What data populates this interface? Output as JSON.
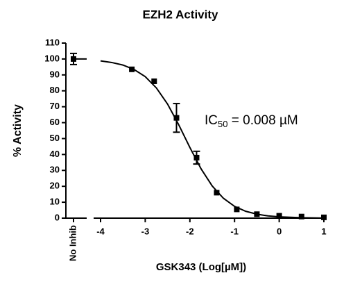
{
  "chart_data": {
    "type": "scatter",
    "title": "EZH2 Activity",
    "x_label": "GSK343 (Log[µM])",
    "y_label": "% Activity",
    "annotation": {
      "text": "IC",
      "subscript": "50",
      "rest": " = 0.008 µM"
    },
    "no_inhib": {
      "label": "No Inhib",
      "value": 100,
      "error": 3.5
    },
    "series": [
      {
        "color": "#000000",
        "x": [
          -3.3,
          -2.8,
          -2.3,
          -1.85,
          -1.4,
          -0.95,
          -0.5,
          0,
          0.5,
          1
        ],
        "values": [
          93.5,
          86,
          63,
          38,
          16,
          5.5,
          2.5,
          1.5,
          1,
          0.5
        ],
        "errors": [
          null,
          null,
          9,
          4,
          null,
          null,
          null,
          null,
          null,
          null
        ]
      }
    ],
    "curve": {
      "x": [
        -4,
        -3.75,
        -3.5,
        -3.25,
        -3,
        -2.75,
        -2.5,
        -2.25,
        -2,
        -1.75,
        -1.5,
        -1.25,
        -1,
        -0.75,
        -0.5,
        -0.25,
        0,
        0.5,
        1
      ],
      "values": [
        98.8,
        97.8,
        96.2,
        93.4,
        88.9,
        81.8,
        71.7,
        58.7,
        44.4,
        31.0,
        20.2,
        12.5,
        7.4,
        4.3,
        2.5,
        1.4,
        0.8,
        0.25,
        0.08
      ]
    },
    "xlim": [
      -4,
      1
    ],
    "xticks": [
      -4,
      -3,
      -2,
      -1,
      0,
      1
    ],
    "ylim": [
      0,
      110
    ],
    "yticks": [
      0,
      10,
      20,
      30,
      40,
      50,
      60,
      70,
      80,
      90,
      100,
      110
    ]
  }
}
